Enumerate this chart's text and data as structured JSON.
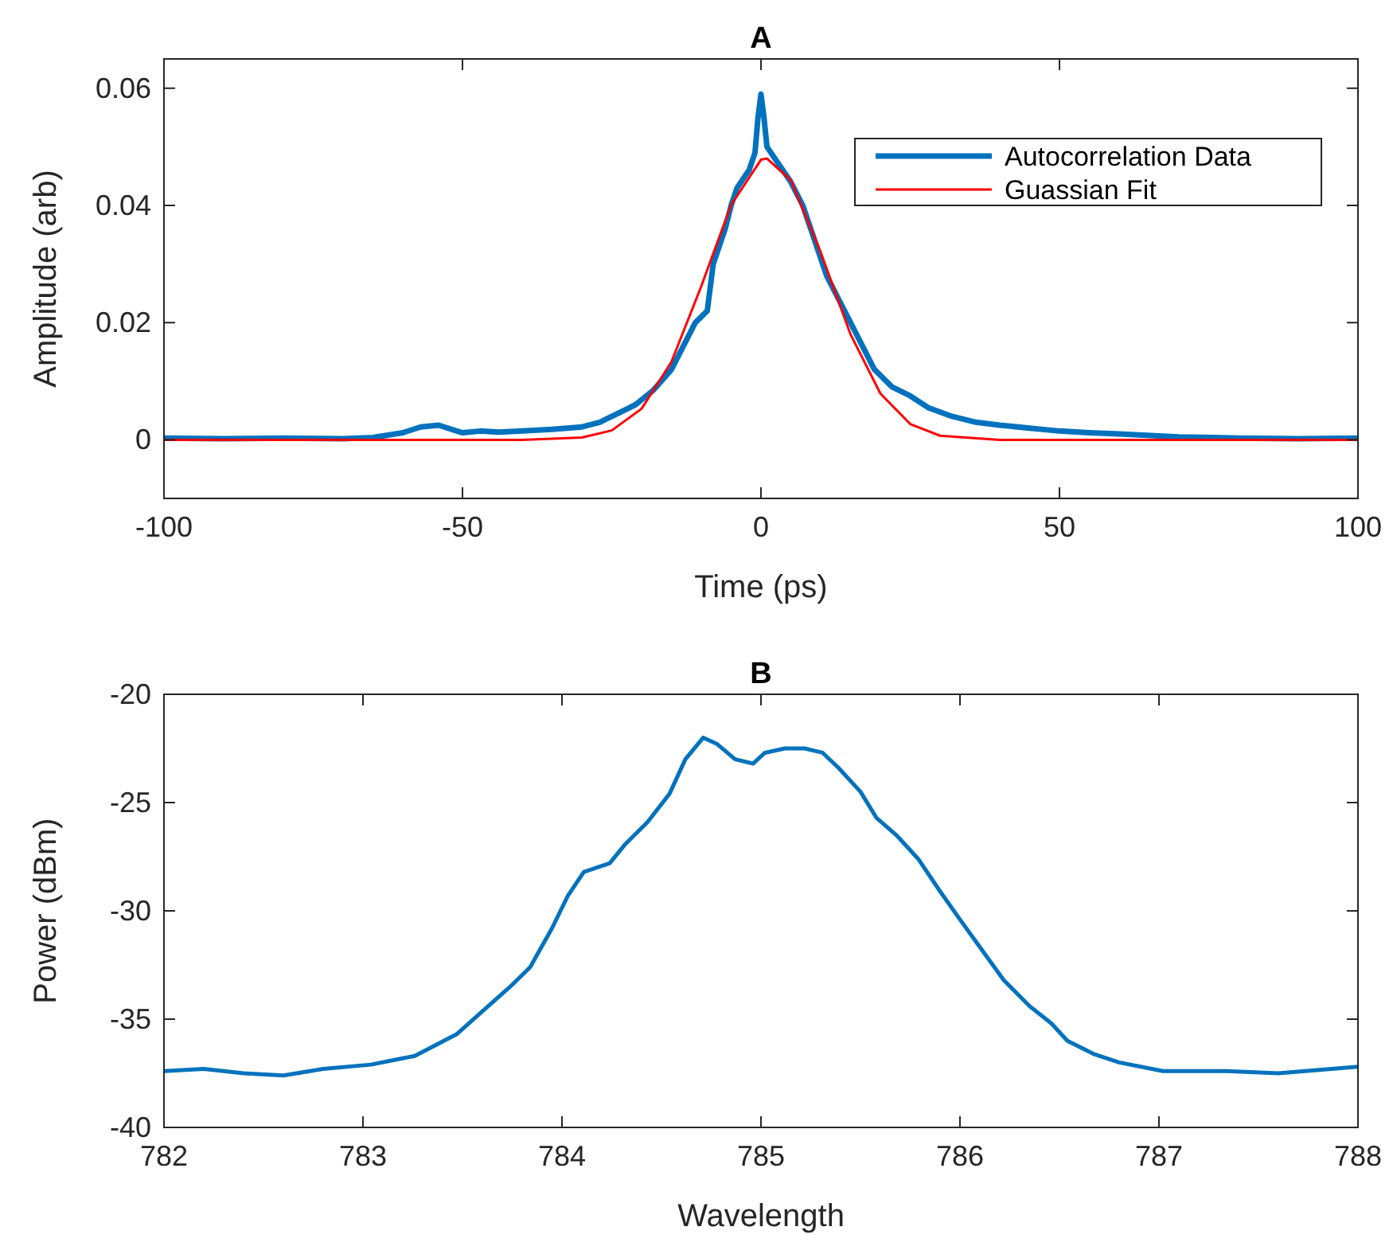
{
  "chart_data": [
    {
      "type": "line",
      "title": "A",
      "xlabel": "Time (ps)",
      "ylabel": "Amplitude (arb)",
      "xlim": [
        -100,
        100
      ],
      "ylim": [
        -0.01,
        0.065
      ],
      "xticks": [
        -100,
        -50,
        0,
        50,
        100
      ],
      "yticks": [
        0,
        0.02,
        0.04,
        0.06
      ],
      "legend": "top right",
      "grid": false,
      "series": [
        {
          "name": "Autocorrelation Data",
          "color": "#0072bd",
          "x": [
            -100,
            -90,
            -80,
            -70,
            -65,
            -60,
            -57,
            -54,
            -50,
            -47,
            -44,
            -40,
            -35,
            -30,
            -27,
            -24,
            -21,
            -18,
            -15,
            -13,
            -11,
            -9,
            -8,
            -6,
            -5,
            -4,
            -2,
            -1,
            -0.5,
            0,
            0.5,
            1,
            3,
            5,
            7,
            9,
            11,
            13,
            15,
            17,
            19,
            22,
            25,
            28,
            32,
            36,
            40,
            45,
            50,
            55,
            60,
            70,
            80,
            90,
            100
          ],
          "values": [
            0.0003,
            0.0002,
            0.0003,
            0.0002,
            0.0004,
            0.0012,
            0.0022,
            0.0025,
            0.0012,
            0.0015,
            0.0013,
            0.0015,
            0.0018,
            0.0022,
            0.003,
            0.0045,
            0.006,
            0.0085,
            0.012,
            0.016,
            0.02,
            0.022,
            0.03,
            0.036,
            0.04,
            0.043,
            0.046,
            0.049,
            0.055,
            0.059,
            0.055,
            0.05,
            0.047,
            0.044,
            0.04,
            0.034,
            0.028,
            0.024,
            0.02,
            0.016,
            0.012,
            0.009,
            0.0075,
            0.0055,
            0.004,
            0.003,
            0.0025,
            0.002,
            0.0015,
            0.0012,
            0.001,
            0.0005,
            0.0003,
            0.0002,
            0.0003
          ]
        },
        {
          "name": "Guassian Fit",
          "color": "#ff0000",
          "x": [
            -100,
            -40,
            -30,
            -25,
            -20,
            -15,
            -10,
            -5,
            0,
            1,
            5,
            10,
            15,
            20,
            25,
            30,
            40,
            100
          ],
          "values": [
            0,
            0,
            0.0004,
            0.0016,
            0.0053,
            0.0133,
            0.0262,
            0.0401,
            0.0478,
            0.048,
            0.0443,
            0.032,
            0.018,
            0.0079,
            0.0027,
            0.0007,
            0,
            0
          ]
        }
      ]
    },
    {
      "type": "line",
      "title": "B",
      "xlabel": "Wavelength",
      "ylabel": "Power (dBm)",
      "xlim": [
        782,
        788
      ],
      "ylim": [
        -40,
        -20
      ],
      "xticks": [
        782,
        783,
        784,
        785,
        786,
        787,
        788
      ],
      "yticks": [
        -40,
        -35,
        -30,
        -25,
        -20
      ],
      "grid": false,
      "series": [
        {
          "color": "#0072bd",
          "x": [
            782,
            782.2,
            782.4,
            782.6,
            782.8,
            783.04,
            783.26,
            783.47,
            783.58,
            783.74,
            783.84,
            783.95,
            784.03,
            784.11,
            784.24,
            784.32,
            784.43,
            784.54,
            784.62,
            784.71,
            784.78,
            784.87,
            784.96,
            785.02,
            785.12,
            785.22,
            785.31,
            785.39,
            785.5,
            785.58,
            785.68,
            785.79,
            785.9,
            786,
            786.11,
            786.22,
            786.35,
            786.46,
            786.54,
            786.67,
            786.8,
            787.02,
            787.34,
            787.6,
            788
          ],
          "values": [
            -37.4,
            -37.3,
            -37.5,
            -37.6,
            -37.3,
            -37.1,
            -36.7,
            -35.7,
            -34.8,
            -33.5,
            -32.6,
            -30.8,
            -29.3,
            -28.2,
            -27.8,
            -26.9,
            -25.9,
            -24.6,
            -23,
            -22,
            -22.3,
            -23,
            -23.2,
            -22.7,
            -22.5,
            -22.5,
            -22.7,
            -23.4,
            -24.5,
            -25.7,
            -26.5,
            -27.6,
            -29.1,
            -30.4,
            -31.8,
            -33.2,
            -34.4,
            -35.2,
            -36,
            -36.6,
            -37,
            -37.4,
            -37.4,
            -37.5,
            -37.2
          ]
        }
      ]
    }
  ]
}
